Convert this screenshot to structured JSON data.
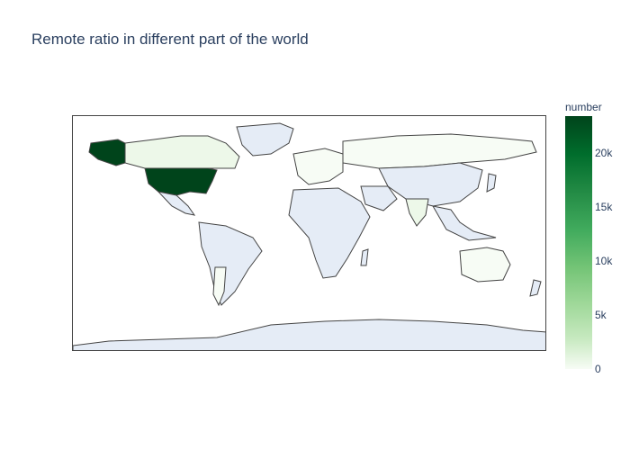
{
  "title": "Remote ratio in different part of the world",
  "colorbar": {
    "title": "number",
    "ticks": [
      "20k",
      "15k",
      "10k",
      "5k",
      "0"
    ],
    "colorscale": [
      "#f7fcf5",
      "#c7e9c0",
      "#a1d99b",
      "#74c476",
      "#41ab5d",
      "#238b45",
      "#006d2c",
      "#00441b"
    ]
  },
  "colors": {
    "no_data": "#e5ecf6",
    "border": "#444444"
  },
  "map": {
    "projection": "equirectangular",
    "countries_with_data": [
      {
        "region": "United States",
        "value": 23000
      },
      {
        "region": "Canada",
        "value": 1500
      },
      {
        "region": "Russia",
        "value": 100
      },
      {
        "region": "India",
        "value": 500
      },
      {
        "region": "Australia",
        "value": 500
      },
      {
        "region": "Western Europe",
        "value": 800
      },
      {
        "region": "South America (Brazil/Argentina)",
        "value": 100
      }
    ]
  }
}
